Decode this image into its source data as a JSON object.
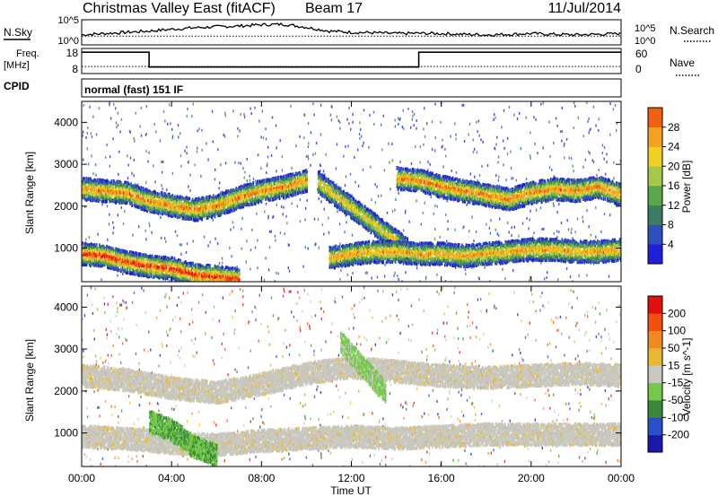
{
  "header": {
    "station": "Christmas Valley East (fitACF)",
    "beam": "Beam 17",
    "date": "11/Jul/2014"
  },
  "labels": {
    "nsky": "N.Sky",
    "nsearch": "N.Search",
    "freq_line1": "Freq.",
    "freq_line2": "[MHz]",
    "nave": "Nave",
    "cpid": "CPID",
    "cpid_value": "normal (fast) 151 IF",
    "noise_tick_hi": "10^5",
    "noise_tick_lo": "10^0",
    "freq_tick_hi": "18",
    "freq_tick_lo": "8",
    "nave_tick_hi": "60",
    "nave_tick_lo": "0"
  },
  "chart_data": [
    {
      "type": "line",
      "panel": "noise",
      "series": [
        {
          "name": "N.Sky",
          "x": [
            0,
            1,
            2,
            3,
            4,
            5,
            6,
            7,
            8,
            9,
            10,
            11,
            12,
            13,
            14,
            15,
            16,
            17,
            18,
            19,
            20,
            21,
            22,
            23,
            24
          ],
          "values": [
            0.4,
            0.45,
            0.5,
            0.55,
            0.62,
            0.68,
            0.72,
            0.75,
            0.8,
            0.82,
            0.7,
            0.55,
            0.5,
            0.48,
            0.45,
            0.46,
            0.45,
            0.42,
            0.4,
            0.42,
            0.45,
            0.42,
            0.4,
            0.42,
            0.45
          ]
        },
        {
          "name": "N.Search",
          "x": [
            0,
            24
          ],
          "values": [
            0.35,
            0.35
          ]
        }
      ]
    },
    {
      "type": "line",
      "panel": "frequency",
      "x_unit": "hours UT",
      "series": [
        {
          "name": "Freq.",
          "x": [
            0,
            3,
            3,
            15,
            15,
            24
          ],
          "values": [
            16.5,
            16.5,
            10.6,
            10.6,
            16.5,
            16.5
          ]
        },
        {
          "name": "Nave",
          "x": [
            0,
            24
          ],
          "values": [
            17,
            17
          ]
        }
      ]
    },
    {
      "type": "heatmap",
      "panel": "power",
      "ylabel": "Slant Range [km]",
      "colorbar_label": "Power [dB]",
      "colorbar_ticks": [
        "4",
        "8",
        "12",
        "16",
        "20",
        "24",
        "28"
      ],
      "ylim": [
        200,
        4500
      ],
      "yticks": [
        "1000",
        "2000",
        "3000",
        "4000"
      ],
      "bands": [
        {
          "x": [
            0,
            1,
            2,
            3,
            4,
            5,
            6,
            7,
            8,
            9,
            10
          ],
          "y": [
            2450,
            2400,
            2350,
            2150,
            2050,
            1950,
            2050,
            2250,
            2400,
            2500,
            2650
          ],
          "level": 24
        },
        {
          "x": [
            0,
            1,
            2,
            3,
            4,
            5,
            6,
            7
          ],
          "y": [
            900,
            850,
            700,
            600,
            550,
            400,
            350,
            300
          ],
          "level": 28
        },
        {
          "x": [
            10.5,
            11.5,
            12.5,
            13.5,
            14.5
          ],
          "y": [
            2600,
            2200,
            1800,
            1400,
            1000
          ],
          "level": 20
        },
        {
          "x": [
            14,
            15,
            16,
            17,
            18,
            19,
            20,
            21,
            22,
            23,
            24
          ],
          "y": [
            2700,
            2650,
            2500,
            2400,
            2300,
            2200,
            2350,
            2450,
            2400,
            2500,
            2300
          ],
          "level": 24
        },
        {
          "x": [
            11,
            12,
            13,
            14,
            15,
            16,
            17,
            18,
            19,
            20,
            21,
            22,
            23,
            24
          ],
          "y": [
            800,
            900,
            950,
            950,
            900,
            900,
            850,
            900,
            950,
            1000,
            1000,
            950,
            950,
            1000
          ],
          "level": 22
        }
      ]
    },
    {
      "type": "heatmap",
      "panel": "velocity",
      "ylabel": "Slant Range [km]",
      "xlabel": "Time UT",
      "colorbar_label": "Velocity [m s^-1]",
      "colorbar_ticks": [
        "200",
        "100",
        "50",
        "15",
        "-15",
        "-50",
        "-100",
        "-200"
      ],
      "xticks": [
        "00:00",
        "04:00",
        "08:00",
        "12:00",
        "16:00",
        "20:00",
        "00:00"
      ],
      "ylim": [
        200,
        4500
      ],
      "yticks": [
        "1000",
        "2000",
        "3000",
        "4000"
      ],
      "bands": [
        {
          "x": [
            0,
            2,
            4,
            6,
            8,
            10,
            12,
            14,
            16,
            18,
            20,
            22,
            24
          ],
          "y": [
            2400,
            2300,
            2100,
            2000,
            2200,
            2450,
            2600,
            2500,
            2400,
            2350,
            2400,
            2450,
            2400
          ],
          "level": 0
        },
        {
          "x": [
            0,
            2,
            4,
            6,
            8,
            10,
            12,
            14,
            16,
            18,
            20,
            22,
            24
          ],
          "y": [
            950,
            900,
            800,
            750,
            850,
            900,
            950,
            900,
            950,
            1000,
            1000,
            1000,
            1000
          ],
          "level": 0
        },
        {
          "x": [
            11.5,
            12.5,
            13.5
          ],
          "y": [
            3200,
            2600,
            2000
          ],
          "level": 30
        },
        {
          "x": [
            3,
            4,
            5,
            6
          ],
          "y": [
            1300,
            1100,
            700,
            500
          ],
          "level": 60
        }
      ]
    }
  ]
}
